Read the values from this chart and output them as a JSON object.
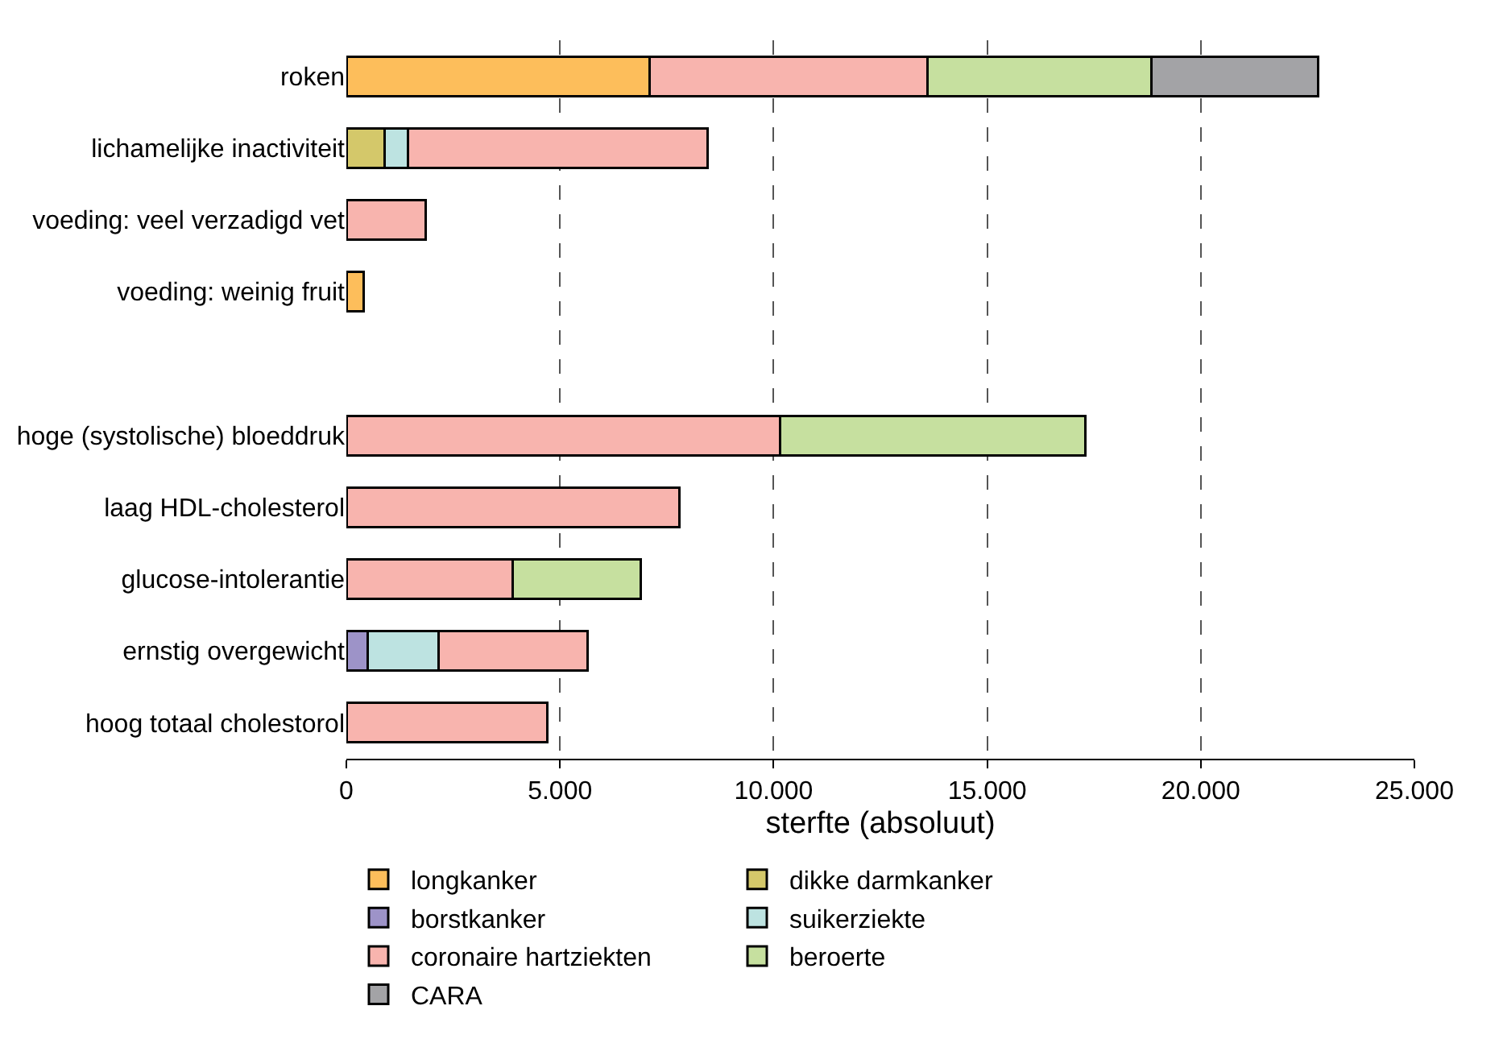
{
  "chart_data": {
    "type": "bar",
    "orientation": "horizontal",
    "stacked": true,
    "xlabel": "sterfte (absoluut)",
    "categories": [
      "roken",
      "lichamelijke inactiviteit",
      "voeding: veel verzadigd vet",
      "voeding: weinig fruit",
      null,
      "hoge (systolische) bloeddruk",
      "laag HDL-cholesterol",
      "glucose-intolerantie",
      "ernstig overgewicht",
      "hoog totaal cholestorol"
    ],
    "series": [
      {
        "name": "longkanker",
        "color": "#fdbe5b",
        "values": [
          7100,
          null,
          null,
          400,
          null,
          null,
          null,
          null,
          null,
          null
        ]
      },
      {
        "name": "dikke darmkanker",
        "color": "#d4c86a",
        "values": [
          null,
          900,
          null,
          null,
          null,
          null,
          null,
          null,
          null,
          null
        ]
      },
      {
        "name": "borstkanker",
        "color": "#9d93c8",
        "values": [
          null,
          null,
          null,
          null,
          null,
          null,
          null,
          null,
          500,
          null
        ]
      },
      {
        "name": "suikerziekte",
        "color": "#bde3e1",
        "values": [
          null,
          550,
          null,
          null,
          null,
          null,
          null,
          null,
          1650,
          null
        ]
      },
      {
        "name": "coronaire hartziekten",
        "color": "#f8b4ae",
        "values": [
          6500,
          7000,
          1850,
          null,
          null,
          10150,
          7800,
          3900,
          3500,
          4700
        ]
      },
      {
        "name": "beroerte",
        "color": "#c6e09f",
        "values": [
          5250,
          null,
          null,
          null,
          null,
          7150,
          null,
          3000,
          null,
          null
        ]
      },
      {
        "name": "CARA",
        "color": "#a3a3a6",
        "values": [
          3900,
          null,
          null,
          null,
          null,
          null,
          null,
          null,
          null,
          null
        ]
      }
    ],
    "xlim": [
      0,
      25000
    ],
    "xticks": [
      0,
      {
        "value": 5000,
        "label": "5.000"
      },
      {
        "value": 10000,
        "label": "10.000"
      },
      {
        "value": 15000,
        "label": "15.000"
      },
      {
        "value": 20000,
        "label": "20.000"
      },
      {
        "value": 25000,
        "label": "25.000"
      }
    ],
    "grid": "x",
    "legend": "bottom"
  }
}
